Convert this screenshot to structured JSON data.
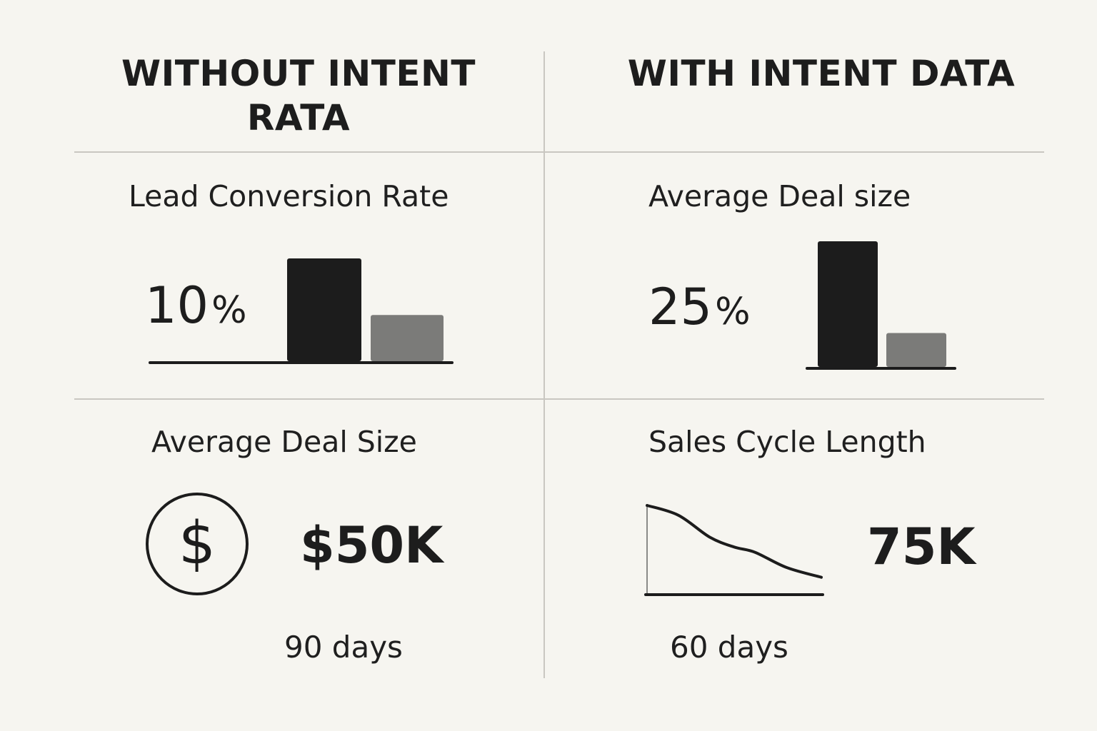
{
  "columns": {
    "left_header": "WITHOUT INTENT RATA",
    "right_header": "WITH INTENT DATA"
  },
  "panels": {
    "top_left": {
      "title": "Lead Conversion Rate",
      "value_number": "10",
      "value_unit": "%"
    },
    "top_right": {
      "title": "Average Deal size",
      "value_number": "25",
      "value_unit": "%"
    },
    "bottom_left": {
      "title": "Average Deal Size",
      "value": "$50K",
      "icon": "dollar-circle-icon",
      "duration": "90 days"
    },
    "bottom_right": {
      "title": "Sales Cycle Length",
      "value": "75K",
      "duration": "60 days"
    }
  },
  "chart_data": [
    {
      "type": "bar",
      "panel": "top_left",
      "values": [
        1.0,
        0.45
      ],
      "colors": [
        "#1c1c1c",
        "#7b7b79"
      ]
    },
    {
      "type": "bar",
      "panel": "top_right",
      "values": [
        1.0,
        0.27
      ],
      "colors": [
        "#1c1c1c",
        "#7b7b79"
      ]
    },
    {
      "type": "line",
      "panel": "bottom_right",
      "x": [
        0,
        0.18,
        0.36,
        0.5,
        0.62,
        0.8,
        1.0
      ],
      "values": [
        1.0,
        0.87,
        0.58,
        0.45,
        0.38,
        0.18,
        0.05
      ],
      "colors": [
        "#1c1c1c"
      ]
    }
  ]
}
